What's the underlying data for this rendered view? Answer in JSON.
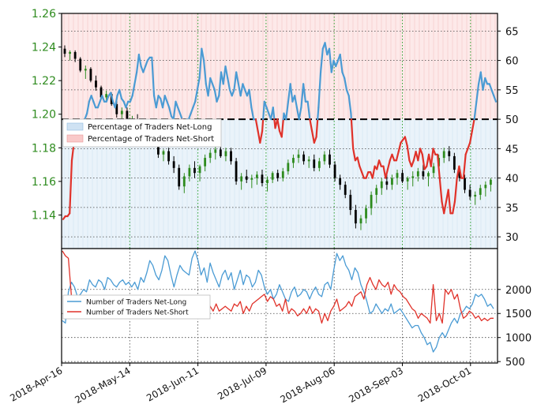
{
  "colors": {
    "price_axis_text": "#2e8b1e",
    "up_candle": "#2e8b1e",
    "down_candle": "#000000",
    "long_line": "#4a9bd4",
    "short_line": "#e0322a",
    "long_fill": "#eaf3fa",
    "short_fill": "#fde9e9",
    "grid_vertical": "#2ca02c",
    "grid_horizontal": "#444444",
    "fifty_line": "#000000"
  },
  "chart_data": [
    {
      "id": "top",
      "type": "line",
      "overlay": "candlestick",
      "x_dates": [
        "2018-Apr-16",
        "2018-May-14",
        "2018-Jun-11",
        "2018-Jul-09",
        "2018-Aug-06",
        "2018-Sep-03",
        "2018-Oct-01"
      ],
      "price_axis": {
        "side": "left",
        "ticks": [
          "1.26",
          "1.24",
          "1.22",
          "1.20",
          "1.18",
          "1.16",
          "1.14"
        ],
        "ylim": [
          1.12,
          1.26
        ]
      },
      "pct_axis": {
        "side": "right",
        "ticks": [
          "65",
          "60",
          "55",
          "50",
          "45",
          "40",
          "35",
          "30"
        ],
        "ylim": [
          28,
          68
        ]
      },
      "reference_line": 50,
      "legend": {
        "placement": "upper-left",
        "entries": [
          "Percentage of Traders Net-Long",
          "Percentage of Traders Net-Short"
        ]
      },
      "series_pct_long": [
        33,
        33.5,
        33.5,
        34,
        43,
        46,
        47,
        47.5,
        48.5,
        47.5,
        50,
        51,
        53,
        54,
        53,
        52,
        52,
        53,
        54,
        53,
        53,
        54,
        54.5,
        53,
        52,
        54,
        55,
        53.5,
        53,
        52,
        53,
        53,
        54,
        56,
        58,
        61,
        59,
        58,
        59,
        60,
        60.5,
        60.5,
        54,
        52,
        54,
        53.5,
        52,
        54,
        53,
        52,
        50.5,
        50,
        53,
        52,
        51,
        50,
        49,
        50,
        50,
        51,
        52,
        53,
        55,
        57,
        62,
        60,
        56,
        54,
        57,
        56,
        55,
        53,
        54,
        58,
        56,
        59,
        57,
        55,
        54,
        55,
        58,
        56,
        54,
        56,
        55,
        54,
        55,
        52,
        50,
        50,
        48,
        46,
        48,
        53,
        52,
        51,
        50,
        52,
        48.5,
        50,
        48,
        47,
        51,
        50,
        53,
        56,
        53,
        54,
        52,
        50,
        52,
        56,
        53,
        53,
        50,
        48,
        46,
        47,
        52,
        58,
        62,
        63,
        61,
        62,
        58,
        60,
        59,
        60,
        61,
        58,
        57,
        55,
        54,
        51,
        45,
        43,
        43.5,
        42,
        41,
        40,
        40,
        41,
        41,
        40,
        42,
        41.5,
        43,
        42,
        42,
        40,
        41.5,
        43,
        44,
        43,
        43,
        44.5,
        46,
        46.5,
        47,
        45.5,
        43,
        42,
        43,
        44.5,
        43,
        45,
        44,
        41.5,
        42,
        44,
        42,
        45,
        44,
        44,
        40,
        36,
        34,
        36,
        38,
        34,
        34,
        36,
        40,
        42,
        40,
        40,
        44,
        45,
        46,
        48,
        50,
        53,
        56,
        58,
        55,
        57,
        56,
        56,
        55,
        54,
        53
      ],
      "candles": [
        [
          1.239,
          1.241,
          1.234,
          1.236
        ],
        [
          1.236,
          1.238,
          1.232,
          1.237
        ],
        [
          1.237,
          1.238,
          1.231,
          1.233
        ],
        [
          1.233,
          1.234,
          1.225,
          1.226
        ],
        [
          1.226,
          1.229,
          1.221,
          1.227
        ],
        [
          1.227,
          1.228,
          1.219,
          1.22
        ],
        [
          1.22,
          1.223,
          1.214,
          1.216
        ],
        [
          1.216,
          1.217,
          1.209,
          1.21
        ],
        [
          1.21,
          1.214,
          1.208,
          1.212
        ],
        [
          1.212,
          1.213,
          1.205,
          1.206
        ],
        [
          1.206,
          1.208,
          1.198,
          1.2
        ],
        [
          1.2,
          1.204,
          1.195,
          1.202
        ],
        [
          1.202,
          1.204,
          1.194,
          1.196
        ],
        [
          1.196,
          1.199,
          1.192,
          1.197
        ],
        [
          1.197,
          1.2,
          1.19,
          1.192
        ],
        [
          1.192,
          1.193,
          1.185,
          1.187
        ],
        [
          1.187,
          1.19,
          1.184,
          1.189
        ],
        [
          1.189,
          1.191,
          1.181,
          1.183
        ],
        [
          1.183,
          1.184,
          1.174,
          1.176
        ],
        [
          1.176,
          1.179,
          1.172,
          1.178
        ],
        [
          1.178,
          1.18,
          1.17,
          1.172
        ],
        [
          1.172,
          1.175,
          1.165,
          1.168
        ],
        [
          1.168,
          1.17,
          1.155,
          1.157
        ],
        [
          1.157,
          1.165,
          1.153,
          1.163
        ],
        [
          1.163,
          1.17,
          1.16,
          1.168
        ],
        [
          1.168,
          1.172,
          1.162,
          1.165
        ],
        [
          1.165,
          1.17,
          1.16,
          1.169
        ],
        [
          1.169,
          1.176,
          1.166,
          1.174
        ],
        [
          1.174,
          1.179,
          1.171,
          1.177
        ],
        [
          1.177,
          1.181,
          1.173,
          1.179
        ],
        [
          1.179,
          1.181,
          1.174,
          1.175
        ],
        [
          1.175,
          1.18,
          1.172,
          1.178
        ],
        [
          1.178,
          1.18,
          1.17,
          1.172
        ],
        [
          1.172,
          1.174,
          1.158,
          1.16
        ],
        [
          1.16,
          1.165,
          1.155,
          1.163
        ],
        [
          1.163,
          1.167,
          1.159,
          1.161
        ],
        [
          1.161,
          1.164,
          1.156,
          1.162
        ],
        [
          1.162,
          1.166,
          1.158,
          1.164
        ],
        [
          1.164,
          1.167,
          1.157,
          1.159
        ],
        [
          1.159,
          1.163,
          1.154,
          1.161
        ],
        [
          1.161,
          1.166,
          1.159,
          1.165
        ],
        [
          1.165,
          1.167,
          1.16,
          1.162
        ],
        [
          1.162,
          1.168,
          1.16,
          1.166
        ],
        [
          1.166,
          1.173,
          1.164,
          1.171
        ],
        [
          1.171,
          1.176,
          1.168,
          1.174
        ],
        [
          1.174,
          1.179,
          1.171,
          1.176
        ],
        [
          1.176,
          1.178,
          1.17,
          1.172
        ],
        [
          1.172,
          1.175,
          1.168,
          1.173
        ],
        [
          1.173,
          1.176,
          1.166,
          1.168
        ],
        [
          1.168,
          1.174,
          1.166,
          1.172
        ],
        [
          1.172,
          1.178,
          1.17,
          1.176
        ],
        [
          1.176,
          1.179,
          1.168,
          1.17
        ],
        [
          1.17,
          1.172,
          1.16,
          1.162
        ],
        [
          1.162,
          1.164,
          1.155,
          1.158
        ],
        [
          1.158,
          1.16,
          1.15,
          1.152
        ],
        [
          1.152,
          1.155,
          1.14,
          1.143
        ],
        [
          1.143,
          1.146,
          1.132,
          1.135
        ],
        [
          1.135,
          1.14,
          1.131,
          1.138
        ],
        [
          1.138,
          1.146,
          1.135,
          1.144
        ],
        [
          1.144,
          1.154,
          1.14,
          1.152
        ],
        [
          1.152,
          1.158,
          1.147,
          1.156
        ],
        [
          1.156,
          1.162,
          1.152,
          1.16
        ],
        [
          1.16,
          1.165,
          1.155,
          1.158
        ],
        [
          1.158,
          1.164,
          1.155,
          1.162
        ],
        [
          1.162,
          1.167,
          1.158,
          1.165
        ],
        [
          1.165,
          1.167,
          1.159,
          1.16
        ],
        [
          1.16,
          1.163,
          1.155,
          1.162
        ],
        [
          1.162,
          1.166,
          1.157,
          1.163
        ],
        [
          1.163,
          1.168,
          1.16,
          1.166
        ],
        [
          1.166,
          1.17,
          1.161,
          1.163
        ],
        [
          1.163,
          1.166,
          1.157,
          1.165
        ],
        [
          1.165,
          1.171,
          1.162,
          1.169
        ],
        [
          1.169,
          1.176,
          1.166,
          1.174
        ],
        [
          1.174,
          1.18,
          1.171,
          1.178
        ],
        [
          1.178,
          1.181,
          1.172,
          1.175
        ],
        [
          1.175,
          1.177,
          1.165,
          1.167
        ],
        [
          1.167,
          1.169,
          1.16,
          1.162
        ],
        [
          1.162,
          1.164,
          1.153,
          1.155
        ],
        [
          1.155,
          1.158,
          1.149,
          1.151
        ],
        [
          1.151,
          1.154,
          1.146,
          1.152
        ],
        [
          1.152,
          1.158,
          1.149,
          1.156
        ],
        [
          1.156,
          1.16,
          1.151,
          1.158
        ],
        [
          1.158,
          1.162,
          1.154,
          1.161
        ]
      ]
    },
    {
      "id": "bottom",
      "type": "line",
      "y_axis": {
        "side": "right",
        "ticks": [
          "2000",
          "1500",
          "1000",
          "500"
        ],
        "ylim": [
          470,
          2850
        ]
      },
      "legend": {
        "placement": "left",
        "entries": [
          "Number of Traders Net-Long",
          "Number of Traders Net-Short"
        ]
      },
      "series": [
        {
          "name": "Number of Traders Net-Long",
          "values": [
            1350,
            1300,
            1950,
            2150,
            2050,
            1850,
            1900,
            2000,
            1950,
            2200,
            2100,
            2050,
            2200,
            2150,
            2000,
            2250,
            2200,
            2100,
            2050,
            2150,
            2200,
            2100,
            2150,
            2050,
            2150,
            2000,
            2250,
            2150,
            2350,
            2600,
            2500,
            2300,
            2200,
            2400,
            2700,
            2600,
            2300,
            2050,
            2300,
            2500,
            2400,
            2350,
            2300,
            2650,
            2800,
            2600,
            2300,
            2450,
            2150,
            2550,
            2350,
            2200,
            2050,
            2300,
            2400,
            2200,
            2350,
            2000,
            2200,
            2400,
            2100,
            2300,
            2250,
            2050,
            2150,
            2400,
            2300,
            2050,
            1900,
            2000,
            1800,
            1900,
            2100,
            1950,
            1800,
            1750,
            1950,
            2050,
            1850,
            1900,
            2000,
            1950,
            1800,
            1950,
            2050,
            1900,
            1850,
            2100,
            2150,
            2000,
            2400,
            2750,
            2600,
            2700,
            2500,
            2400,
            2200,
            2450,
            2350,
            2100,
            1950,
            1750,
            1500,
            1550,
            1700,
            1600,
            1500,
            1600,
            1550,
            1700,
            1500,
            1550,
            1600,
            1500,
            1400,
            1300,
            1200,
            1250,
            1250,
            1100,
            1000,
            850,
            900,
            700,
            800,
            1000,
            1100,
            1000,
            1150,
            1300,
            1400,
            1300,
            1500,
            1550,
            1650,
            1600,
            1700,
            1900,
            1850,
            1900,
            1800,
            1650,
            1700,
            1600
          ]
        },
        {
          "name": "Number of Traders Net-Short",
          "values": [
            2800,
            2700,
            2650,
            1850,
            1700,
            1800,
            1850,
            1750,
            1800,
            1700,
            1750,
            1800,
            1700,
            1750,
            1800,
            1750,
            1700,
            1800,
            1650,
            1700,
            1800,
            1750,
            1650,
            1700,
            1800,
            1850,
            1700,
            1650,
            1750,
            1700,
            1650,
            1700,
            1750,
            1650,
            1700,
            1600,
            1800,
            1750,
            1700,
            1800,
            1750,
            1600,
            1650,
            1700,
            1550,
            1700,
            1650,
            1600,
            1750,
            1650,
            1550,
            1700,
            1550,
            1600,
            1650,
            1600,
            1550,
            1700,
            1650,
            1750,
            1500,
            1650,
            1550,
            1700,
            1750,
            1800,
            1850,
            1900,
            1750,
            1850,
            1800,
            1650,
            1700,
            1550,
            1800,
            1500,
            1600,
            1550,
            1450,
            1500,
            1600,
            1500,
            1650,
            1500,
            1600,
            1550,
            1300,
            1500,
            1350,
            1550,
            1650,
            1800,
            1550,
            1600,
            1650,
            1750,
            1650,
            1850,
            1900,
            1950,
            1800,
            2100,
            2250,
            2100,
            2000,
            2200,
            2100,
            2050,
            2150,
            1900,
            2100,
            2000,
            1950,
            1850,
            1800,
            1700,
            1600,
            1550,
            1400,
            1500,
            1450,
            1400,
            1300,
            2100,
            1350,
            1500,
            1300,
            2000,
            1900,
            2000,
            1800,
            1900,
            1600,
            1400,
            1450,
            1550,
            1500,
            1400,
            1450,
            1350,
            1400,
            1350,
            1400,
            1400
          ]
        }
      ]
    }
  ]
}
